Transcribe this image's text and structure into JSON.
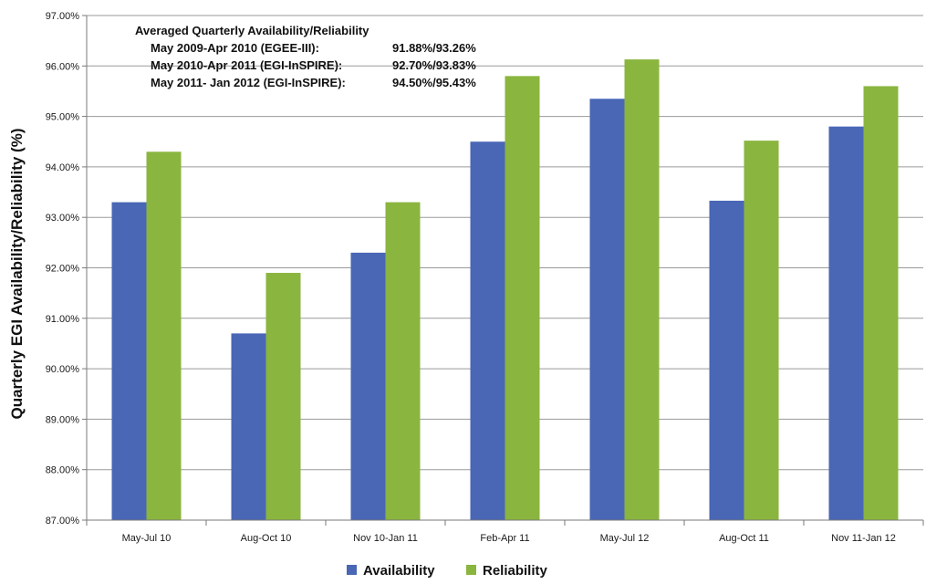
{
  "chart_data": {
    "type": "bar",
    "ylabel": "Quarterly EGI Availability/Reliability (%)",
    "xlabel": "",
    "ylim": [
      87.0,
      97.0
    ],
    "y_ticks": [
      "87.00%",
      "88.00%",
      "89.00%",
      "90.00%",
      "91.00%",
      "92.00%",
      "93.00%",
      "94.00%",
      "95.00%",
      "96.00%",
      "97.00%"
    ],
    "y_tick_values": [
      87,
      88,
      89,
      90,
      91,
      92,
      93,
      94,
      95,
      96,
      97
    ],
    "grid": true,
    "legend_position": "bottom",
    "categories": [
      "May-Jul 10",
      "Aug-Oct 10",
      "Nov 10-Jan 11",
      "Feb-Apr 11",
      "May-Jul 12",
      "Aug-Oct 11",
      "Nov 11-Jan 12"
    ],
    "series": [
      {
        "name": "Availability",
        "color": "#4a67b6",
        "values": [
          93.3,
          90.7,
          92.3,
          94.5,
          95.35,
          93.33,
          94.8
        ]
      },
      {
        "name": "Reliability",
        "color": "#8ab53f",
        "values": [
          94.3,
          91.9,
          93.3,
          95.8,
          96.13,
          94.52,
          95.6
        ]
      }
    ],
    "annotation": {
      "title": "Averaged Quarterly Availability/Reliability",
      "rows": [
        {
          "period": "May 2009-Apr 2010 (EGEE-III):",
          "value": "91.88%/93.26%"
        },
        {
          "period": "May 2010-Apr 2011 (EGI-InSPIRE):",
          "value": "92.70%/93.83%"
        },
        {
          "period": "May 2011- Jan 2012 (EGI-InSPIRE):",
          "value": "94.50%/95.43%"
        }
      ]
    }
  }
}
